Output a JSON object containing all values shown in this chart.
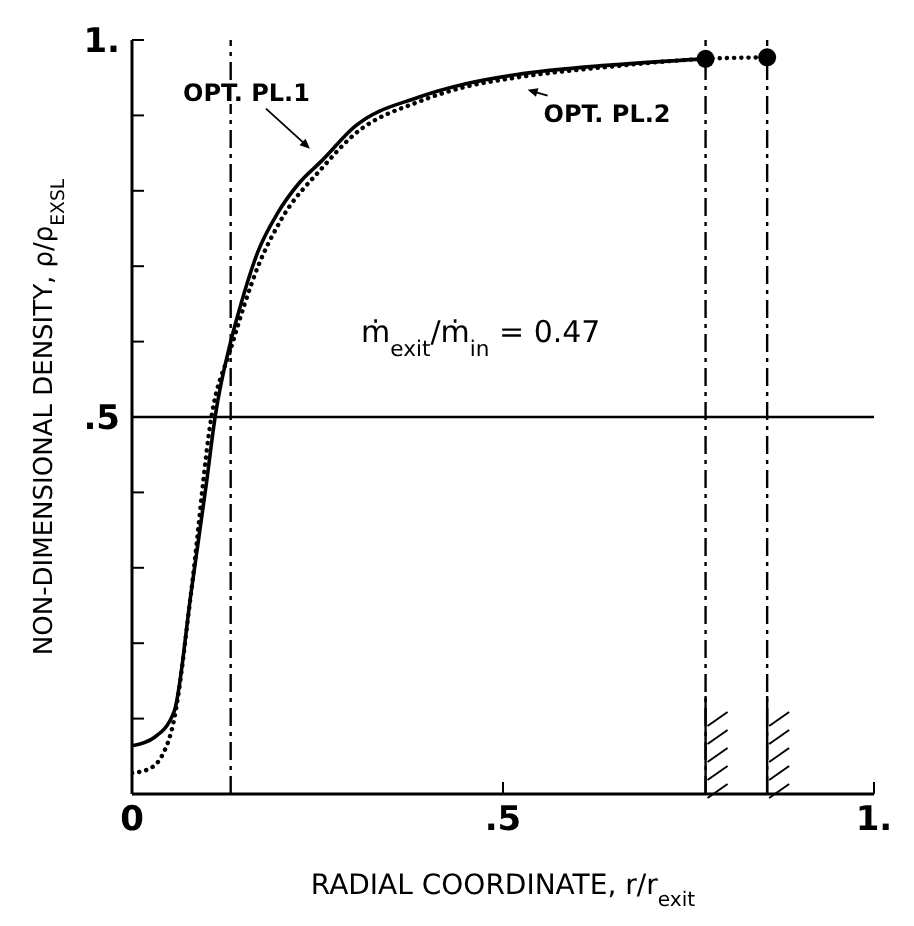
{
  "chart_data": {
    "type": "line",
    "xlabel": "RADIAL COORDINATE, r/r$_{exit}$",
    "ylabel": "NON-DIMENSIONAL DENSITY, ρ/ρ$_{EXSL}$",
    "xlim": [
      0,
      1
    ],
    "ylim": [
      0,
      1
    ],
    "xticks": [
      0,
      {
        "value": 0.5,
        "label": ".5"
      },
      {
        "value": 1,
        "label": "1."
      }
    ],
    "yticks": [
      {
        "value": 0.1,
        "label": null
      },
      {
        "value": 0.2,
        "label": null
      },
      {
        "value": 0.3,
        "label": null
      },
      {
        "value": 0.4,
        "label": null
      },
      {
        "value": 0.5,
        "label": ".5"
      },
      {
        "value": 0.6,
        "label": null
      },
      {
        "value": 0.7,
        "label": null
      },
      {
        "value": 0.8,
        "label": null
      },
      {
        "value": 0.9,
        "label": null
      },
      {
        "value": 1,
        "label": "1."
      }
    ],
    "series": [
      {
        "name": "OPT. PL.1",
        "color": "#000000",
        "line_style": "solid",
        "marker": "none",
        "x": [
          0,
          0.03,
          0.057,
          0.08,
          0.1,
          0.112,
          0.133,
          0.144,
          0.17,
          0.196,
          0.225,
          0.256,
          0.3,
          0.386,
          0.45,
          0.517,
          0.648,
          0.773
        ],
        "values": [
          0.064,
          0.075,
          0.11,
          0.27,
          0.41,
          0.5,
          0.6,
          0.64,
          0.72,
          0.77,
          0.81,
          0.84,
          0.885,
          0.924,
          0.942,
          0.954,
          0.967,
          0.975
        ]
      },
      {
        "name": "OPT. PL.2",
        "color": "#000000",
        "line_style": "dotted",
        "marker": "none",
        "x": [
          0,
          0.02,
          0.04,
          0.057,
          0.08,
          0.107,
          0.133,
          0.17,
          0.2,
          0.256,
          0.3,
          0.386,
          0.45,
          0.517,
          0.648,
          0.773,
          0.856
        ],
        "values": [
          0.028,
          0.032,
          0.05,
          0.1,
          0.27,
          0.5,
          0.59,
          0.7,
          0.76,
          0.83,
          0.875,
          0.918,
          0.938,
          0.95,
          0.965,
          0.975,
          0.977
        ]
      },
      {
        "type": "scatter",
        "color": "#000000",
        "marker": "circle",
        "x": [
          0.773,
          0.856
        ],
        "values": [
          0.975,
          0.977
        ]
      }
    ],
    "ref_lines": [
      {
        "axis": "x",
        "value": 0.133,
        "line_style": "dashed",
        "color": "#000000"
      },
      {
        "axis": "x",
        "value": 0.773,
        "line_style": "dashed",
        "color": "#000000"
      },
      {
        "axis": "x",
        "value": 0.856,
        "line_style": "dashed",
        "color": "#000000"
      },
      {
        "axis": "y",
        "value": 0.5,
        "line_style": "solid",
        "color": "#000000"
      }
    ],
    "annotations": [
      "ṁ$_{exit}$/ṁ$_{in}$ = 0.47"
    ]
  }
}
